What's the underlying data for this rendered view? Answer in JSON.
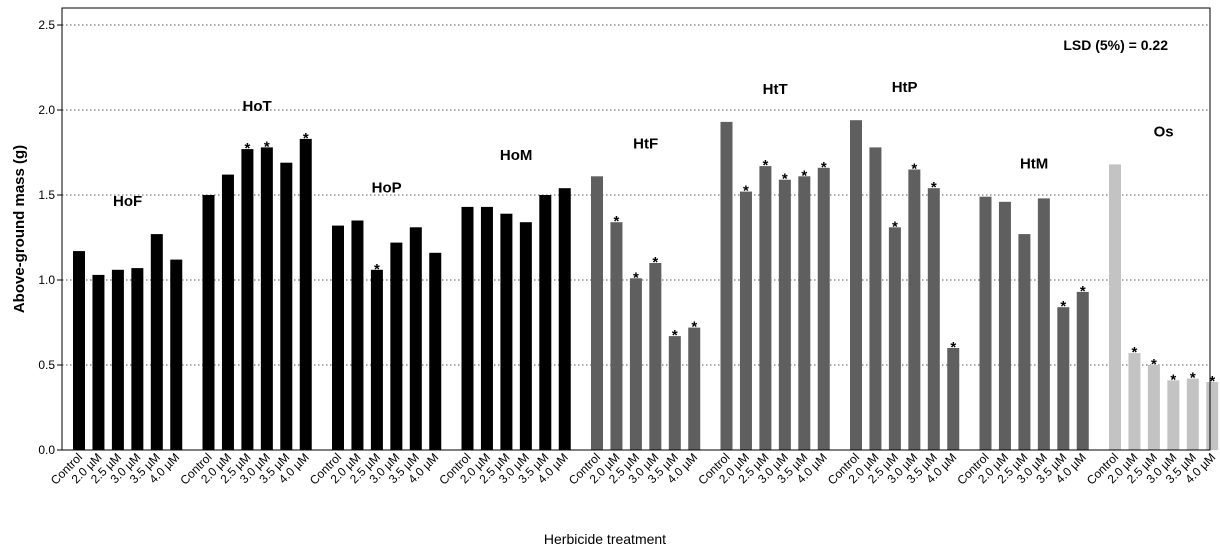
{
  "chart_data": {
    "type": "bar",
    "xlabel": "Herbicide treatment",
    "ylabel": "Above-ground mass (g)",
    "ylim": [
      0,
      2.6
    ],
    "yticks": [
      "0.0",
      "0.5",
      "1.0",
      "1.5",
      "2.0",
      "2.5"
    ],
    "grid": "horizontal dotted at ticks",
    "annotation": "LSD (5%) = 0.22",
    "categories": [
      "Control",
      "2.0 µM",
      "2.5 µM",
      "3.0 µM",
      "3.5 µM",
      "4.0 µM"
    ],
    "colors": {
      "Ho": "#000000",
      "Ht": "#5f5f5f",
      "Os": "#c3c3c3"
    },
    "groups": [
      {
        "label": "HoF",
        "color": "#000000",
        "values": [
          1.17,
          1.03,
          1.06,
          1.07,
          1.27,
          1.12
        ],
        "significant": [
          false,
          false,
          false,
          false,
          false,
          false
        ]
      },
      {
        "label": "HoT",
        "color": "#000000",
        "values": [
          1.5,
          1.62,
          1.77,
          1.78,
          1.69,
          1.83
        ],
        "significant": [
          false,
          false,
          true,
          true,
          false,
          true
        ]
      },
      {
        "label": "HoP",
        "color": "#000000",
        "values": [
          1.32,
          1.35,
          1.06,
          1.22,
          1.31,
          1.16
        ],
        "significant": [
          false,
          false,
          true,
          false,
          false,
          false
        ]
      },
      {
        "label": "HoM",
        "color": "#000000",
        "values": [
          1.43,
          1.43,
          1.39,
          1.34,
          1.5,
          1.54
        ],
        "significant": [
          false,
          false,
          false,
          false,
          false,
          false
        ]
      },
      {
        "label": "HtF",
        "color": "#5f5f5f",
        "values": [
          1.61,
          1.34,
          1.01,
          1.1,
          0.67,
          0.72
        ],
        "significant": [
          false,
          true,
          true,
          true,
          true,
          true
        ]
      },
      {
        "label": "HtT",
        "color": "#5f5f5f",
        "values": [
          1.93,
          1.52,
          1.67,
          1.59,
          1.61,
          1.66
        ],
        "significant": [
          false,
          true,
          true,
          true,
          true,
          true
        ]
      },
      {
        "label": "HtP",
        "color": "#5f5f5f",
        "values": [
          1.94,
          1.78,
          1.31,
          1.65,
          1.54,
          0.6
        ],
        "significant": [
          false,
          false,
          true,
          true,
          true,
          true
        ]
      },
      {
        "label": "HtM",
        "color": "#5f5f5f",
        "values": [
          1.49,
          1.46,
          1.27,
          1.48,
          0.84,
          0.93
        ],
        "significant": [
          false,
          false,
          false,
          false,
          true,
          true
        ]
      },
      {
        "label": "Os",
        "color": "#c3c3c3",
        "values": [
          1.68,
          0.57,
          0.5,
          0.41,
          0.42,
          0.4
        ],
        "significant": [
          false,
          true,
          true,
          true,
          true,
          true
        ]
      }
    ],
    "significance_marker": "*"
  }
}
